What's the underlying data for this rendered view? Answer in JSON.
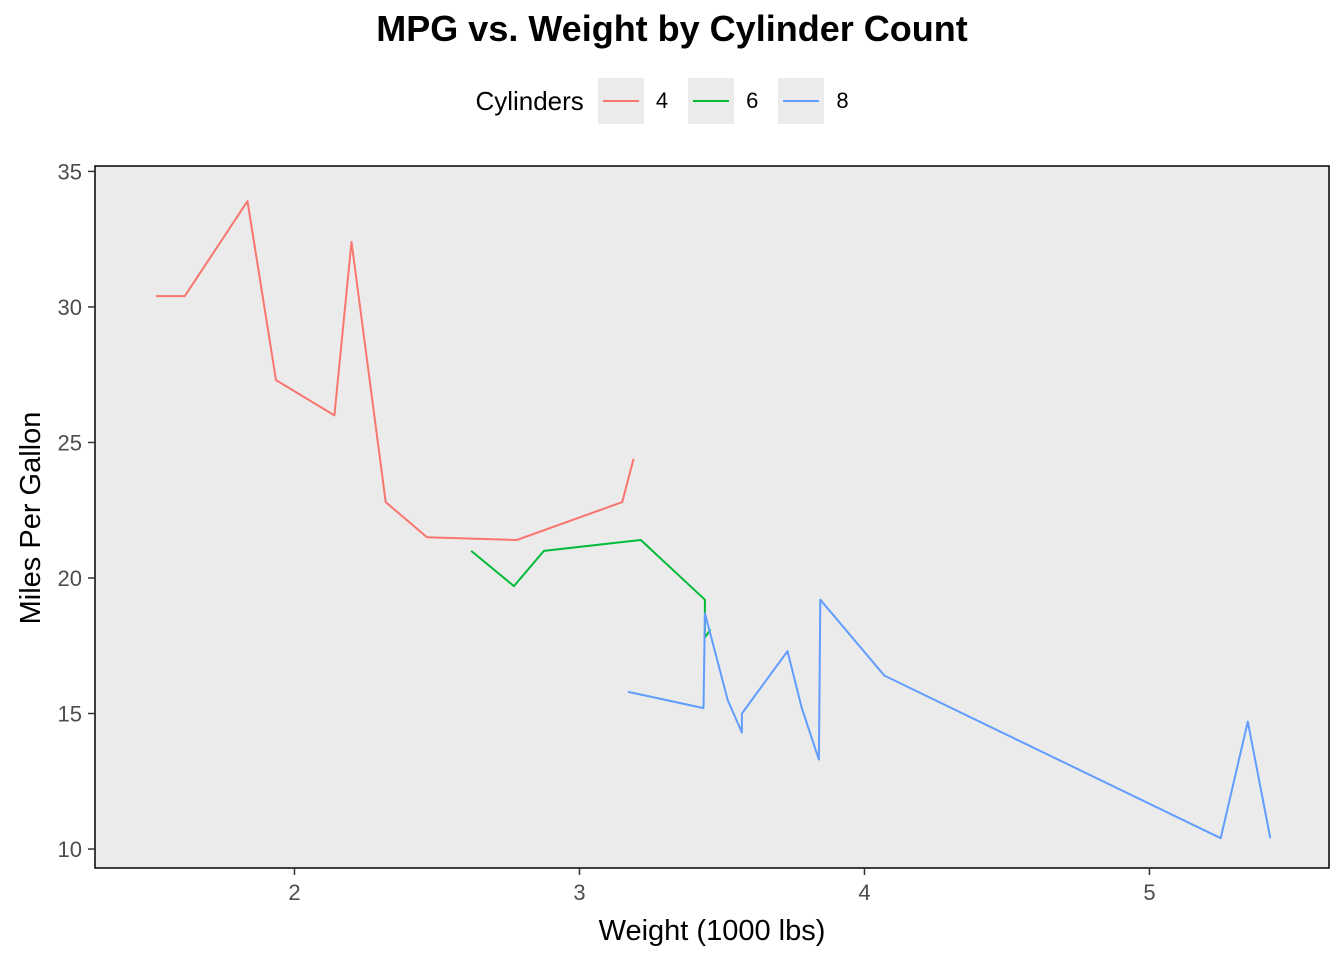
{
  "chart_data": {
    "type": "line",
    "title": "MPG vs. Weight by Cylinder Count",
    "xlabel": "Weight (1000 lbs)",
    "ylabel": "Miles Per Gallon",
    "xlim": [
      1.3,
      5.63
    ],
    "ylim": [
      9.3,
      35.2
    ],
    "x_ticks": [
      2,
      3,
      4,
      5
    ],
    "y_ticks": [
      10,
      15,
      20,
      25,
      30,
      35
    ],
    "grid": false,
    "legend": {
      "title": "Cylinders",
      "position": "top"
    },
    "series": [
      {
        "name": "4",
        "color": "#f8766d",
        "x": [
          1.513,
          1.615,
          1.835,
          1.935,
          2.14,
          2.2,
          2.32,
          2.465,
          2.78,
          3.15,
          3.19
        ],
        "y": [
          30.4,
          30.4,
          33.9,
          27.3,
          26.0,
          32.4,
          22.8,
          21.5,
          21.4,
          22.8,
          24.4
        ]
      },
      {
        "name": "6",
        "color": "#00ba38",
        "x": [
          2.62,
          2.77,
          2.875,
          3.215,
          3.44,
          3.44,
          3.46
        ],
        "y": [
          21.0,
          19.7,
          21.0,
          21.4,
          19.2,
          17.8,
          18.1
        ]
      },
      {
        "name": "8",
        "color": "#619cff",
        "x": [
          3.17,
          3.435,
          3.44,
          3.52,
          3.57,
          3.57,
          3.73,
          3.78,
          3.84,
          3.845,
          4.07,
          5.25,
          5.345,
          5.424
        ],
        "y": [
          15.8,
          15.2,
          18.7,
          15.5,
          14.3,
          15.0,
          17.3,
          15.2,
          13.3,
          19.2,
          16.4,
          10.4,
          14.7,
          10.4
        ]
      }
    ]
  }
}
